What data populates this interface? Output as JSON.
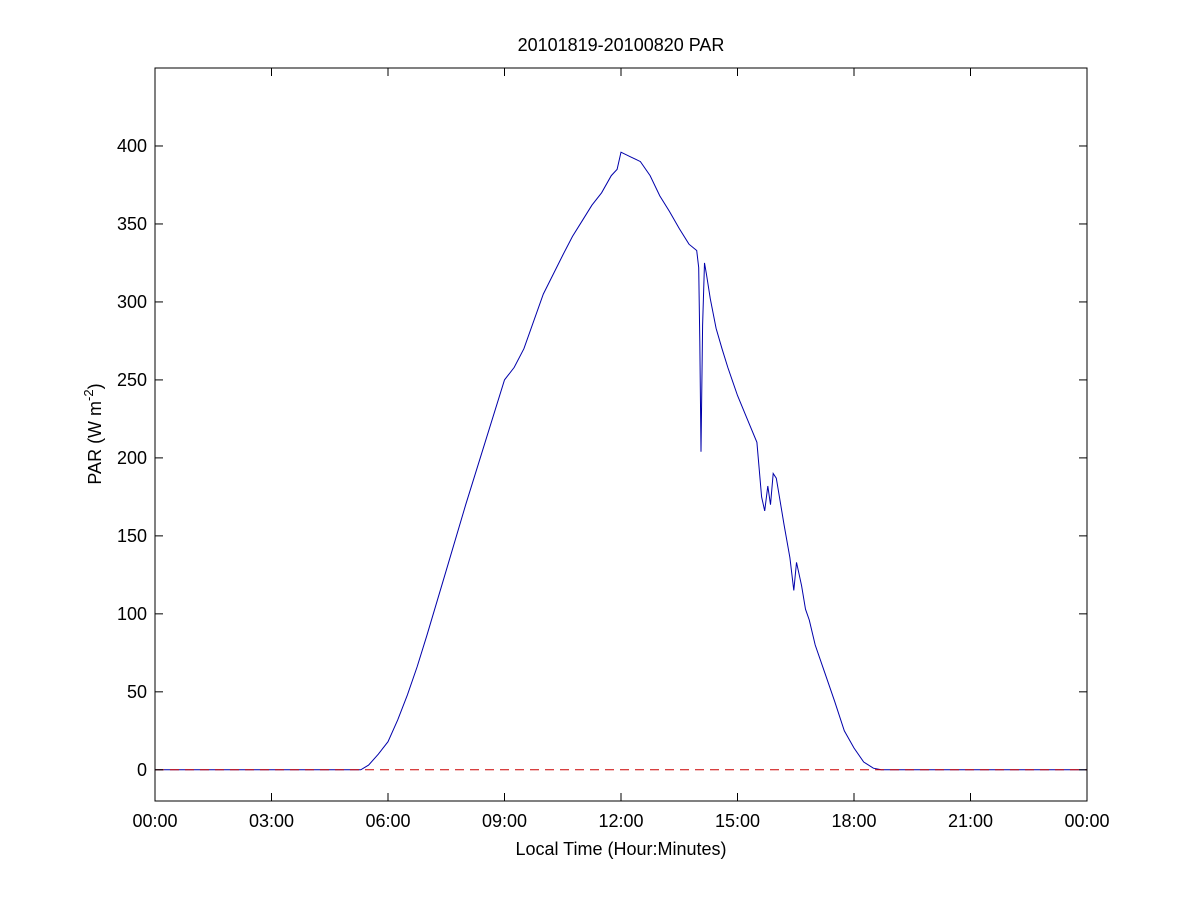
{
  "chart_data": {
    "type": "line",
    "title": "20101819-20100820 PAR",
    "xlabel": "Local Time (Hour:Minutes)",
    "ylabel_main": "PAR (W m",
    "ylabel_sup": "-2",
    "ylabel_close": ")",
    "xlim": [
      0,
      24
    ],
    "ylim": [
      -20,
      450
    ],
    "x_ticks": [
      0,
      3,
      6,
      9,
      12,
      15,
      18,
      21,
      24
    ],
    "x_tick_labels": [
      "00:00",
      "03:00",
      "06:00",
      "09:00",
      "12:00",
      "15:00",
      "18:00",
      "21:00",
      "00:00"
    ],
    "y_ticks": [
      0,
      50,
      100,
      150,
      200,
      250,
      300,
      350,
      400
    ],
    "y_tick_labels": [
      "0",
      "50",
      "100",
      "150",
      "200",
      "250",
      "300",
      "350",
      "400"
    ],
    "grid": false,
    "series": [
      {
        "color": "#0000aa",
        "style": "solid",
        "x": [
          0,
          5.0,
          5.3,
          5.5,
          5.75,
          6.0,
          6.25,
          6.5,
          6.75,
          7.0,
          7.5,
          8.0,
          8.5,
          9.0,
          9.25,
          9.5,
          10.0,
          10.5,
          10.75,
          11.0,
          11.25,
          11.5,
          11.75,
          11.9,
          12.0,
          12.25,
          12.5,
          12.75,
          13.0,
          13.25,
          13.5,
          13.75,
          13.95,
          14.0,
          14.03,
          14.06,
          14.1,
          14.15,
          14.2,
          14.3,
          14.45,
          14.6,
          14.75,
          15.0,
          15.25,
          15.5,
          15.62,
          15.7,
          15.78,
          15.85,
          15.92,
          16.0,
          16.1,
          16.2,
          16.35,
          16.45,
          16.52,
          16.58,
          16.65,
          16.75,
          16.85,
          17.0,
          17.25,
          17.5,
          17.75,
          18.0,
          18.25,
          18.5,
          18.7,
          18.85,
          19.0,
          20.0,
          24.0
        ],
        "y": [
          0,
          0,
          0,
          3,
          10,
          18,
          32,
          48,
          66,
          86,
          128,
          170,
          210,
          250,
          258,
          270,
          305,
          330,
          342,
          352,
          362,
          370,
          381,
          385,
          396,
          393,
          390,
          381,
          368,
          358,
          347,
          337,
          333,
          322,
          275,
          204,
          285,
          325,
          318,
          302,
          283,
          270,
          258,
          240,
          225,
          210,
          175,
          166,
          182,
          170,
          190,
          187,
          172,
          157,
          136,
          115,
          133,
          126,
          118,
          103,
          96,
          80,
          62,
          44,
          25,
          14,
          5,
          1,
          0,
          0,
          0,
          0,
          0
        ]
      },
      {
        "color": "#cc0000",
        "style": "dashed",
        "x": [
          0,
          24
        ],
        "y": [
          0,
          0
        ]
      }
    ]
  }
}
